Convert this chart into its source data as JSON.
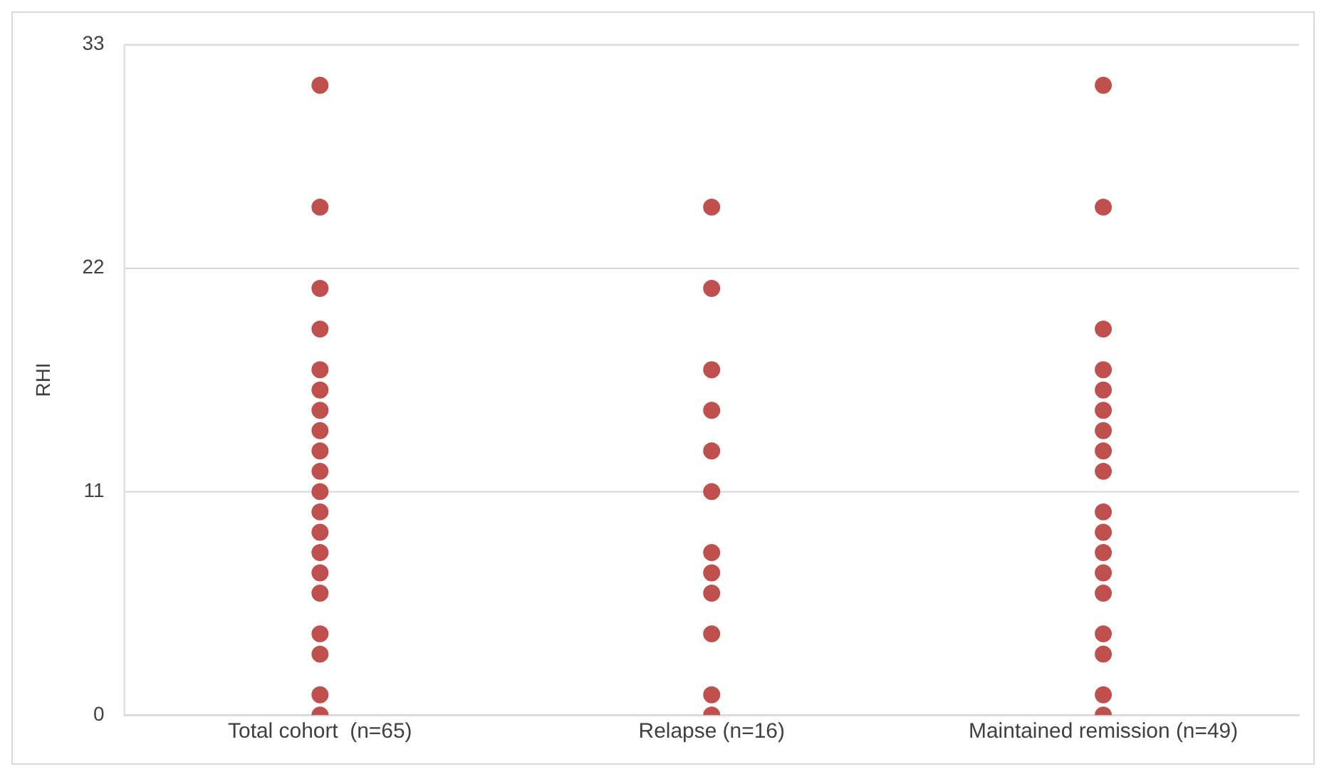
{
  "chart_data": {
    "type": "scatter",
    "ylabel": "RHI",
    "categories": [
      "Total cohort  (n=65)",
      "Relapse (n=16)",
      "Maintained remission (n=49)"
    ],
    "series": [
      {
        "color": "#c0504d",
        "x": [
          "Total cohort  (n=65)",
          "Total cohort  (n=65)",
          "Total cohort  (n=65)",
          "Total cohort  (n=65)",
          "Total cohort  (n=65)",
          "Total cohort  (n=65)",
          "Total cohort  (n=65)",
          "Total cohort  (n=65)",
          "Total cohort  (n=65)",
          "Total cohort  (n=65)",
          "Total cohort  (n=65)",
          "Total cohort  (n=65)",
          "Total cohort  (n=65)",
          "Total cohort  (n=65)",
          "Total cohort  (n=65)",
          "Total cohort  (n=65)",
          "Total cohort  (n=65)",
          "Total cohort  (n=65)",
          "Total cohort  (n=65)",
          "Total cohort  (n=65)",
          "Relapse (n=16)",
          "Relapse (n=16)",
          "Relapse (n=16)",
          "Relapse (n=16)",
          "Relapse (n=16)",
          "Relapse (n=16)",
          "Relapse (n=16)",
          "Relapse (n=16)",
          "Relapse (n=16)",
          "Relapse (n=16)",
          "Relapse (n=16)",
          "Relapse (n=16)",
          "Maintained remission (n=49)",
          "Maintained remission (n=49)",
          "Maintained remission (n=49)",
          "Maintained remission (n=49)",
          "Maintained remission (n=49)",
          "Maintained remission (n=49)",
          "Maintained remission (n=49)",
          "Maintained remission (n=49)",
          "Maintained remission (n=49)",
          "Maintained remission (n=49)",
          "Maintained remission (n=49)",
          "Maintained remission (n=49)",
          "Maintained remission (n=49)",
          "Maintained remission (n=49)",
          "Maintained remission (n=49)",
          "Maintained remission (n=49)",
          "Maintained remission (n=49)",
          "Maintained remission (n=49)"
        ],
        "values": [
          31,
          25,
          21,
          19,
          17,
          16,
          15,
          14,
          13,
          12,
          11,
          10,
          9,
          8,
          7,
          6,
          4,
          3,
          1,
          0,
          25,
          21,
          17,
          15,
          13,
          11,
          8,
          7,
          6,
          4,
          1,
          0,
          31,
          25,
          19,
          17,
          16,
          15,
          14,
          13,
          12,
          10,
          9,
          8,
          7,
          6,
          4,
          3,
          1,
          0
        ]
      }
    ],
    "ylim": [
      0,
      33
    ],
    "yticks": [
      0,
      11,
      22,
      33
    ],
    "grid": "y",
    "marker": "circle",
    "legend": false
  }
}
